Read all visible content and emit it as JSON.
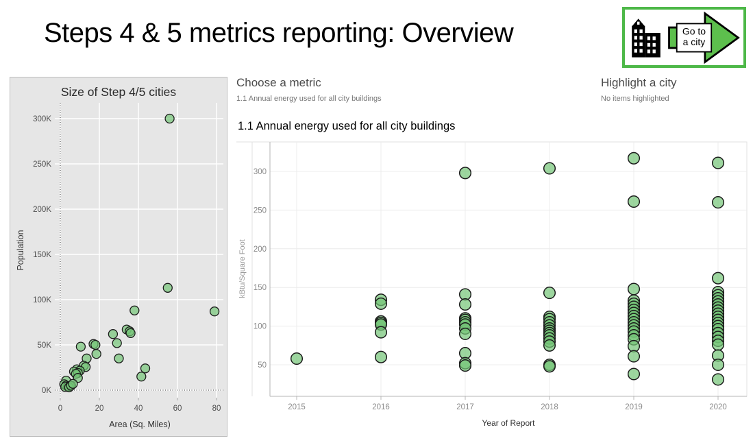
{
  "header": {
    "title": "Steps 4 & 5 metrics reporting: Overview",
    "go_to_city_button": {
      "line1": "Go to",
      "line2": "a city"
    }
  },
  "controls": {
    "choose_metric": {
      "label": "Choose a metric",
      "selected_value": "1.1 Annual energy used for all city buildings"
    },
    "highlight_city": {
      "label": "Highlight a city",
      "status": "No items highlighted"
    }
  },
  "colors": {
    "button_border_green": "#4db848",
    "arrow_green": "#5dbf4d",
    "mark_fill_green": "#74c476",
    "mark_stroke": "#1c1c1c",
    "panel_bg": "#e6e6e6"
  },
  "chart_data": [
    {
      "id": "city_size",
      "type": "scatter",
      "title": "Size of Step 4/5 cities",
      "xlabel": "Area  (Sq. Miles)",
      "ylabel": "Population",
      "xticks": [
        0,
        20,
        40,
        60,
        80
      ],
      "yticks": [
        0,
        50,
        100,
        150,
        200,
        250,
        300
      ],
      "ytick_suffix": "K",
      "xlim": [
        -3,
        84
      ],
      "ylim": [
        -8,
        316
      ],
      "grid": true,
      "points": [
        [
          56,
          300
        ],
        [
          55,
          113
        ],
        [
          38,
          88
        ],
        [
          79,
          87
        ],
        [
          34,
          67
        ],
        [
          35.5,
          65
        ],
        [
          36,
          63
        ],
        [
          27,
          62
        ],
        [
          29,
          52
        ],
        [
          17,
          51
        ],
        [
          18,
          50
        ],
        [
          10.5,
          48
        ],
        [
          18.5,
          40
        ],
        [
          13.5,
          35
        ],
        [
          30,
          35
        ],
        [
          12,
          27
        ],
        [
          13,
          25.5
        ],
        [
          43.5,
          24
        ],
        [
          41.5,
          15
        ],
        [
          8.5,
          23
        ],
        [
          10,
          21.5
        ],
        [
          7,
          20.5
        ],
        [
          9,
          19
        ],
        [
          8,
          18
        ],
        [
          9,
          13.5
        ],
        [
          3,
          10.5
        ],
        [
          2,
          6.5
        ],
        [
          3,
          5
        ],
        [
          4,
          4
        ],
        [
          5,
          4.5
        ],
        [
          2.5,
          3.5
        ],
        [
          4.5,
          3
        ],
        [
          5.5,
          5
        ],
        [
          6.5,
          7
        ]
      ]
    },
    {
      "id": "annual_energy",
      "type": "scatter",
      "title": "1.1 Annual energy used for all city buildings",
      "xlabel": "Year of Report",
      "ylabel": "kBtu/Square Foot",
      "categories": [
        2015,
        2016,
        2017,
        2018,
        2019,
        2020
      ],
      "yticks": [
        50,
        100,
        150,
        200,
        250,
        300
      ],
      "ylim": [
        9,
        340
      ],
      "grid": true,
      "values_by_year": {
        "2015": [
          58
        ],
        "2016": [
          134,
          129,
          106,
          104,
          102,
          92,
          60
        ],
        "2017": [
          298,
          141,
          128,
          110,
          108,
          105,
          102,
          97,
          90,
          65,
          52,
          49
        ],
        "2018": [
          304,
          143,
          112,
          109,
          105,
          101,
          97,
          94,
          91,
          88,
          84,
          80,
          75,
          50,
          48
        ],
        "2019": [
          317,
          261,
          148,
          133,
          129,
          125,
          121,
          117,
          113,
          109,
          105,
          101,
          97,
          93,
          88,
          83,
          74,
          61,
          38
        ],
        "2020": [
          311,
          260,
          162,
          144,
          140,
          136,
          132,
          128,
          124,
          120,
          116,
          112,
          108,
          104,
          100,
          96,
          91,
          86,
          81,
          76,
          62,
          50,
          31
        ]
      }
    }
  ]
}
